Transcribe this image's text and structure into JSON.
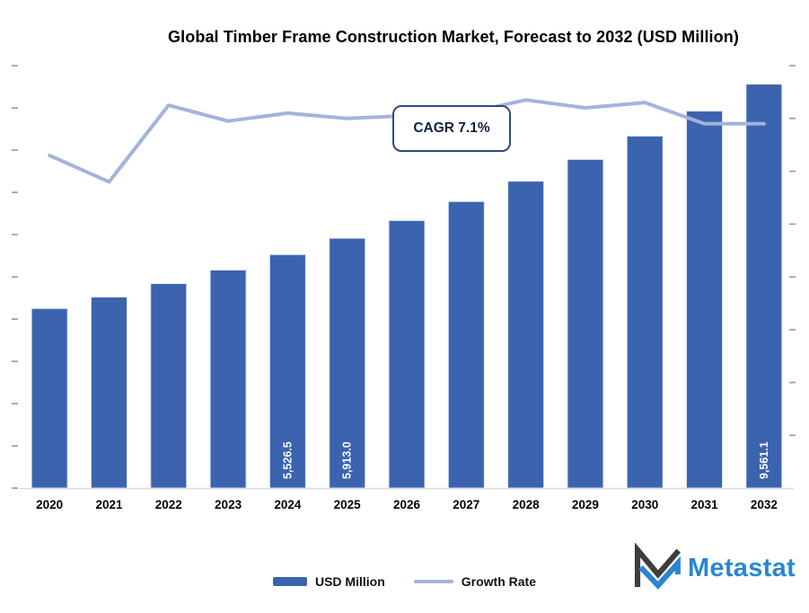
{
  "chart_data": {
    "type": "bar",
    "title": "Global Timber Frame Construction Market, Forecast to 2032 (USD Million)",
    "categories": [
      "2020",
      "2021",
      "2022",
      "2023",
      "2024",
      "2025",
      "2026",
      "2027",
      "2028",
      "2029",
      "2030",
      "2031",
      "2032"
    ],
    "series": [
      {
        "name": "USD Million",
        "type": "bar",
        "color": "#3b63ae",
        "values": [
          4250,
          4520,
          4840,
          5160,
          5526.5,
          5913.0,
          6332.8,
          6782.4,
          7263.9,
          7779.6,
          8331.9,
          8923.5,
          9561.1
        ],
        "value_labels": [
          "",
          "",
          "",
          "",
          "5,526.5",
          "5,913.0",
          "",
          "",
          "",
          "",
          "",
          "",
          "9,561.1"
        ]
      },
      {
        "name": "Growth Rate",
        "type": "line",
        "color": "#a3b3dc",
        "values": [
          6.3,
          5.8,
          7.25,
          6.95,
          7.1,
          7.0,
          7.05,
          7.1,
          7.35,
          7.2,
          7.3,
          6.9,
          6.9
        ]
      }
    ],
    "y1lim": [
      0,
      10000
    ],
    "y1_tick_step": 1000,
    "y2lim": [
      0,
      8
    ],
    "y2_tick_step": 1,
    "grid": false,
    "tick_marks_only": true,
    "legend_position": "bottom",
    "annotations": [
      {
        "text": "CAGR 7.1%",
        "border_color": "#2e4a7c"
      }
    ]
  },
  "logo": {
    "text": "Metastat",
    "brand_color": "#2a86d2",
    "mark_dark_color": "#3d3d3d"
  }
}
